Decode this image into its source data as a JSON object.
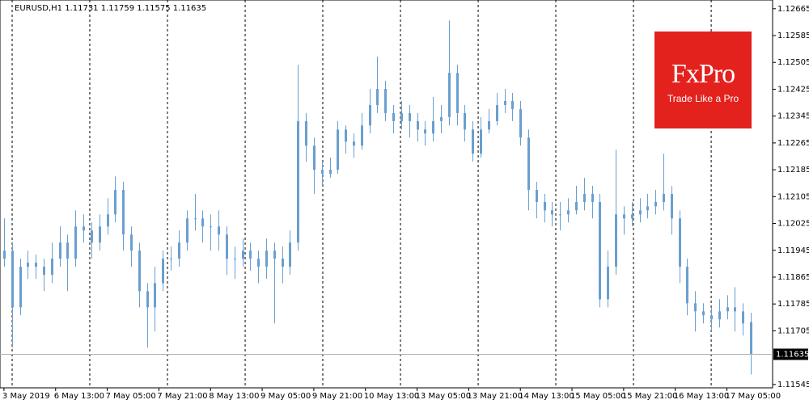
{
  "chart_data": {
    "type": "candlestick",
    "title": "EURUSD,H1  1.11731 1.11759 1.11575 1.11635",
    "color": "#6a9fd0",
    "open": [
      1.1192,
      1.11944,
      1.11775,
      1.11896,
      1.11908,
      1.11896,
      1.11872,
      1.1192,
      1.11968,
      1.1192,
      1.12016,
      1.12004,
      1.11968,
      1.12016,
      1.12052,
      1.12125,
      1.11992,
      1.11944,
      1.11823,
      1.11775,
      1.11847,
      1.1192,
      1.1192,
      1.11968,
      1.1204,
      1.1204,
      1.12016,
      1.12016,
      1.11992,
      1.1192,
      1.1192,
      1.11944,
      1.1192,
      1.11896,
      1.11944,
      1.1192,
      1.11896,
      1.11968,
      1.1233,
      1.12257,
      1.12185,
      1.12173,
      1.12185,
      1.12305,
      1.12269,
      1.12257,
      1.12317,
      1.12378,
      1.12426,
      1.12354,
      1.1233,
      1.12354,
      1.1233,
      1.12305,
      1.12293,
      1.1233,
      1.12342,
      1.12474,
      1.12354,
      1.12305,
      1.12233,
      1.12305,
      1.1233,
      1.12378,
      1.1239,
      1.12366,
      1.12281,
      1.12125,
      1.12089,
      1.12064,
      1.12052,
      1.12052,
      1.12064,
      1.12089,
      1.12113,
      1.12089,
      1.11799,
      1.11896,
      1.12052,
      1.1204,
      1.12052,
      1.12064,
      1.12076,
      1.12089,
      1.12113,
      1.1204,
      1.11896,
      1.11787,
      1.11763,
      1.11751,
      1.11739,
      1.11763,
      1.11775,
      1.11763,
      1.11731
    ],
    "high": [
      1.1204,
      1.11968,
      1.1192,
      1.11944,
      1.11932,
      1.1192,
      1.11968,
      1.12016,
      1.11992,
      1.12064,
      1.12052,
      1.12028,
      1.12052,
      1.121,
      1.12165,
      1.12149,
      1.12016,
      1.11968,
      1.11847,
      1.11896,
      1.11944,
      1.11956,
      1.12004,
      1.12064,
      1.12113,
      1.12064,
      1.12052,
      1.12064,
      1.12016,
      1.11956,
      1.1198,
      1.11968,
      1.11944,
      1.1198,
      1.11968,
      1.11956,
      1.12004,
      1.12498,
      1.12354,
      1.12281,
      1.12209,
      1.12221,
      1.1233,
      1.12317,
      1.12293,
      1.12354,
      1.12426,
      1.12522,
      1.1245,
      1.12378,
      1.1239,
      1.12378,
      1.12354,
      1.1233,
      1.12402,
      1.12378,
      1.1263,
      1.12498,
      1.12378,
      1.1233,
      1.12342,
      1.12366,
      1.12414,
      1.12426,
      1.12414,
      1.1239,
      1.12305,
      1.12149,
      1.12113,
      1.12089,
      1.12089,
      1.121,
      1.12137,
      1.12161,
      1.12137,
      1.12113,
      1.11944,
      1.12245,
      1.12076,
      1.12089,
      1.121,
      1.12113,
      1.12125,
      1.12233,
      1.12137,
      1.12064,
      1.1192,
      1.11823,
      1.11787,
      1.11775,
      1.11799,
      1.11811,
      1.11835,
      1.11787,
      1.11759
    ],
    "low": [
      1.11896,
      1.11655,
      1.11751,
      1.1186,
      1.1186,
      1.11823,
      1.11847,
      1.11896,
      1.11823,
      1.11896,
      1.11968,
      1.1192,
      1.11944,
      1.11992,
      1.12028,
      1.11944,
      1.11896,
      1.11775,
      1.11655,
      1.11703,
      1.11823,
      1.11884,
      1.11896,
      1.11944,
      1.12004,
      1.11968,
      1.11944,
      1.11944,
      1.11872,
      1.1186,
      1.11896,
      1.11884,
      1.11847,
      1.1186,
      1.11727,
      1.11847,
      1.11872,
      1.11944,
      1.12209,
      1.12113,
      1.12137,
      1.12161,
      1.12173,
      1.12233,
      1.12221,
      1.12245,
      1.12293,
      1.12354,
      1.1233,
      1.12293,
      1.12305,
      1.12281,
      1.12269,
      1.12257,
      1.12269,
      1.12293,
      1.12317,
      1.12317,
      1.12269,
      1.12209,
      1.12221,
      1.12293,
      1.12317,
      1.12354,
      1.1233,
      1.12257,
      1.12064,
      1.1204,
      1.12028,
      1.12016,
      1.12004,
      1.12028,
      1.12052,
      1.12064,
      1.1204,
      1.11775,
      1.11775,
      1.11872,
      1.11992,
      1.12016,
      1.12028,
      1.1204,
      1.12052,
      1.12064,
      1.11992,
      1.11847,
      1.11751,
      1.11703,
      1.11727,
      1.11703,
      1.11715,
      1.11739,
      1.11703,
      1.11691,
      1.11575
    ],
    "close": [
      1.11944,
      1.11775,
      1.11896,
      1.11908,
      1.11896,
      1.11872,
      1.1192,
      1.11968,
      1.1192,
      1.12016,
      1.12004,
      1.11968,
      1.12016,
      1.12052,
      1.12125,
      1.11992,
      1.11944,
      1.11823,
      1.11775,
      1.11847,
      1.1192,
      1.1192,
      1.11968,
      1.1204,
      1.1204,
      1.12016,
      1.12016,
      1.11992,
      1.1192,
      1.1192,
      1.11944,
      1.1192,
      1.11896,
      1.11944,
      1.1192,
      1.11896,
      1.11968,
      1.1233,
      1.12257,
      1.12185,
      1.12173,
      1.12185,
      1.12305,
      1.12269,
      1.12257,
      1.12317,
      1.12378,
      1.12426,
      1.12354,
      1.1233,
      1.12354,
      1.1233,
      1.12305,
      1.12293,
      1.1233,
      1.12342,
      1.12474,
      1.12354,
      1.12305,
      1.12233,
      1.12305,
      1.1233,
      1.12378,
      1.1239,
      1.12366,
      1.12281,
      1.12125,
      1.12089,
      1.12064,
      1.12052,
      1.12052,
      1.12064,
      1.12089,
      1.12113,
      1.12089,
      1.11799,
      1.11896,
      1.12052,
      1.1204,
      1.12052,
      1.12064,
      1.12076,
      1.12089,
      1.12113,
      1.1204,
      1.11896,
      1.11787,
      1.11763,
      1.11751,
      1.11739,
      1.11763,
      1.11775,
      1.11763,
      1.11727,
      1.11635
    ],
    "xlim": [
      -0.5,
      96.75
    ],
    "xticks": [
      {
        "value": 0,
        "label": "3 May 2019"
      },
      {
        "value": 6.5,
        "label": "6 May 13:00"
      },
      {
        "value": 13,
        "label": "7 May 05:00"
      },
      {
        "value": 19.5,
        "label": "7 May 21:00"
      },
      {
        "value": 26,
        "label": "8 May 13:00"
      },
      {
        "value": 32.5,
        "label": "9 May 05:00"
      },
      {
        "value": 39,
        "label": "9 May 21:00"
      },
      {
        "value": 45.5,
        "label": "10 May 13:00"
      },
      {
        "value": 52,
        "label": "13 May 05:00"
      },
      {
        "value": 58.5,
        "label": "13 May 21:00"
      },
      {
        "value": 65,
        "label": "14 May 13:00"
      },
      {
        "value": 71.5,
        "label": "15 May 05:00"
      },
      {
        "value": 78,
        "label": "15 May 21:00"
      },
      {
        "value": 84.5,
        "label": "16 May 13:00"
      },
      {
        "value": 91,
        "label": "17 May 05:00"
      }
    ],
    "xgrid": [
      1.03,
      10.8,
      20.58,
      30.36,
      40.13,
      49.91,
      59.69,
      69.46,
      79.24,
      89.02
    ],
    "ylim": [
      1.11535,
      1.12691
    ],
    "yticks": [
      1.12665,
      1.12585,
      1.12505,
      1.12425,
      1.12345,
      1.12265,
      1.12185,
      1.12105,
      1.12025,
      1.11945,
      1.11865,
      1.11785,
      1.11705,
      1.11545
    ],
    "last_price": 1.11635
  },
  "logo": {
    "brand": "FxPro",
    "tagline": "Trade Like a Pro"
  }
}
